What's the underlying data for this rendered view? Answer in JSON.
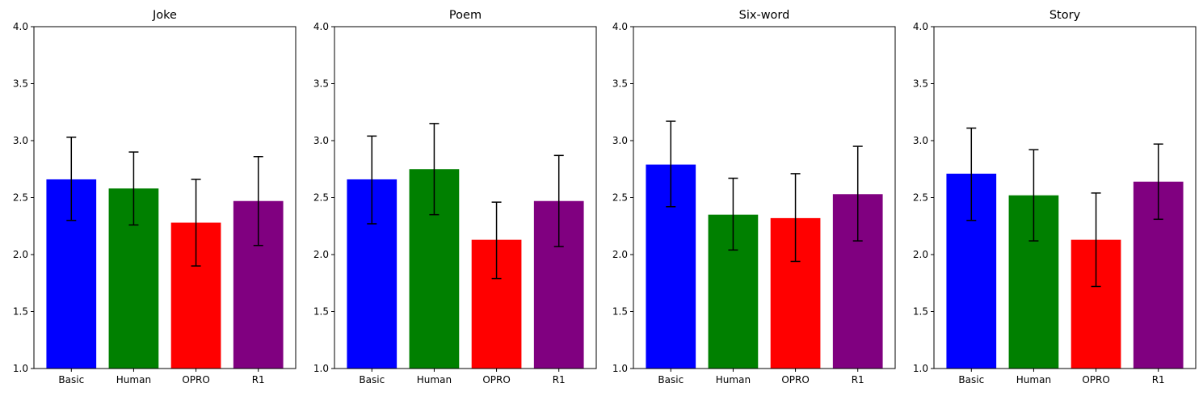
{
  "chart_data": [
    {
      "type": "bar",
      "title": "Joke",
      "categories": [
        "Basic",
        "Human",
        "OPRO",
        "R1"
      ],
      "values": [
        2.66,
        2.58,
        2.28,
        2.47
      ],
      "error_low": [
        2.3,
        2.26,
        1.9,
        2.08
      ],
      "error_high": [
        3.03,
        2.9,
        2.66,
        2.86
      ],
      "colors": [
        "#0000ff",
        "#008000",
        "#ff0000",
        "#800080"
      ],
      "ylim": [
        1.0,
        4.0
      ],
      "yticks": [
        "1.0",
        "1.5",
        "2.0",
        "2.5",
        "3.0",
        "3.5",
        "4.0"
      ],
      "xlabel": "",
      "ylabel": "",
      "grid": false
    },
    {
      "type": "bar",
      "title": "Poem",
      "categories": [
        "Basic",
        "Human",
        "OPRO",
        "R1"
      ],
      "values": [
        2.66,
        2.75,
        2.13,
        2.47
      ],
      "error_low": [
        2.27,
        2.35,
        1.79,
        2.07
      ],
      "error_high": [
        3.04,
        3.15,
        2.46,
        2.87
      ],
      "colors": [
        "#0000ff",
        "#008000",
        "#ff0000",
        "#800080"
      ],
      "ylim": [
        1.0,
        4.0
      ],
      "yticks": [
        "1.0",
        "1.5",
        "2.0",
        "2.5",
        "3.0",
        "3.5",
        "4.0"
      ],
      "xlabel": "",
      "ylabel": "",
      "grid": false
    },
    {
      "type": "bar",
      "title": "Six-word",
      "categories": [
        "Basic",
        "Human",
        "OPRO",
        "R1"
      ],
      "values": [
        2.79,
        2.35,
        2.32,
        2.53
      ],
      "error_low": [
        2.42,
        2.04,
        1.94,
        2.12
      ],
      "error_high": [
        3.17,
        2.67,
        2.71,
        2.95
      ],
      "colors": [
        "#0000ff",
        "#008000",
        "#ff0000",
        "#800080"
      ],
      "ylim": [
        1.0,
        4.0
      ],
      "yticks": [
        "1.0",
        "1.5",
        "2.0",
        "2.5",
        "3.0",
        "3.5",
        "4.0"
      ],
      "xlabel": "",
      "ylabel": "",
      "grid": false
    },
    {
      "type": "bar",
      "title": "Story",
      "categories": [
        "Basic",
        "Human",
        "OPRO",
        "R1"
      ],
      "values": [
        2.71,
        2.52,
        2.13,
        2.64
      ],
      "error_low": [
        2.3,
        2.12,
        1.72,
        2.31
      ],
      "error_high": [
        3.11,
        2.92,
        2.54,
        2.97
      ],
      "colors": [
        "#0000ff",
        "#008000",
        "#ff0000",
        "#800080"
      ],
      "ylim": [
        1.0,
        4.0
      ],
      "yticks": [
        "1.0",
        "1.5",
        "2.0",
        "2.5",
        "3.0",
        "3.5",
        "4.0"
      ],
      "xlabel": "",
      "ylabel": "",
      "grid": false
    }
  ]
}
